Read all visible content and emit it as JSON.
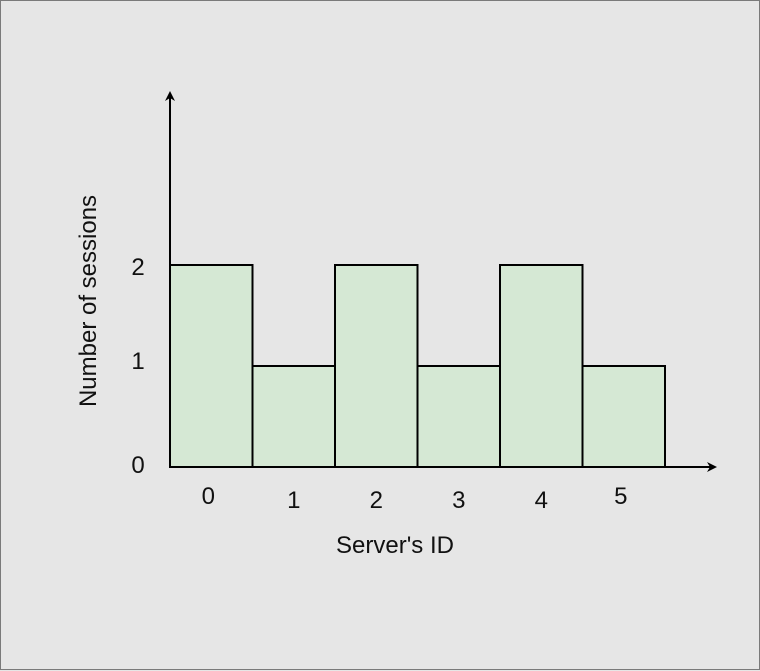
{
  "chart_data": {
    "type": "bar",
    "categories": [
      "0",
      "1",
      "2",
      "3",
      "4",
      "5"
    ],
    "values": [
      2,
      1,
      2,
      1,
      2,
      1
    ],
    "xlabel": "Server's ID",
    "ylabel": "Number of sessions",
    "y_ticks": [
      "0",
      "1",
      "2"
    ],
    "ylim": [
      0,
      2
    ],
    "grid": false,
    "legend": "none"
  },
  "colors": {
    "background": "#e6e6e6",
    "bar_fill": "#d5e8d4",
    "bar_stroke": "#000000",
    "axis": "#000000",
    "text": "#111111"
  }
}
